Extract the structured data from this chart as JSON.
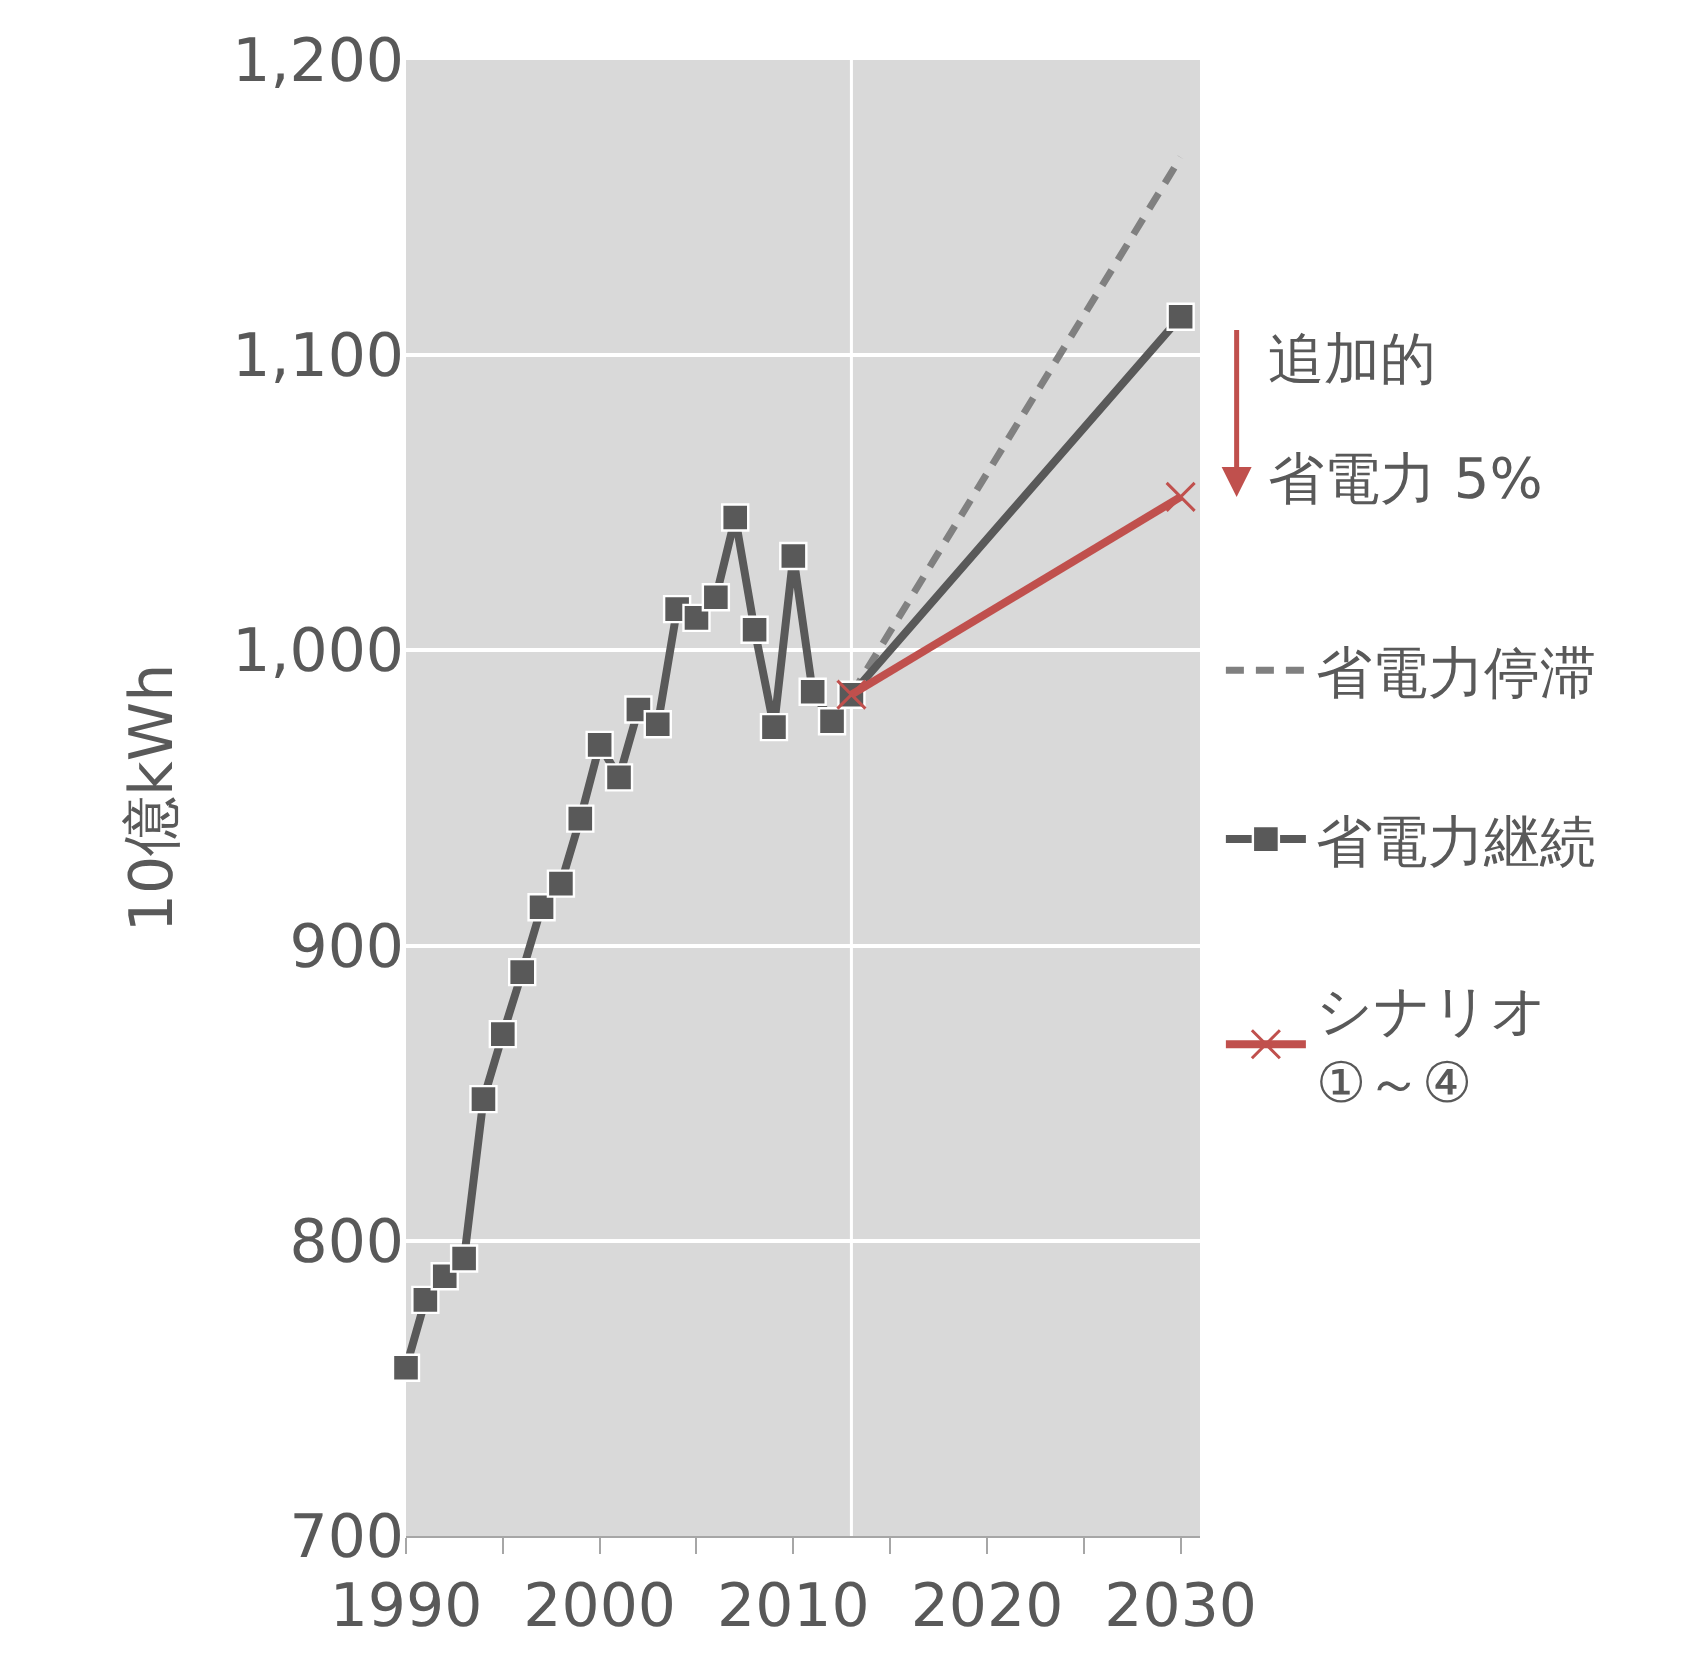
{
  "chart_data": {
    "type": "line",
    "ylabel": "10億kWh",
    "xlim": [
      1990,
      2031
    ],
    "ylim": [
      700,
      1200
    ],
    "xticks": [
      1990,
      {
        "value": 1995,
        "label": null
      },
      2000,
      {
        "value": 2005,
        "label": null
      },
      2010,
      {
        "value": 2015,
        "label": null
      },
      2020,
      {
        "value": 2025,
        "label": null
      },
      2030
    ],
    "yticks": [
      {
        "value": 700,
        "label": "700"
      },
      {
        "value": 800,
        "label": "800"
      },
      {
        "value": 900,
        "label": "900"
      },
      {
        "value": 1000,
        "label": "1,000"
      },
      {
        "value": 1100,
        "label": "1,100"
      },
      {
        "value": 1200,
        "label": "1,200"
      }
    ],
    "grid": "y",
    "legend": "right",
    "ref_lines": [
      {
        "axis": "x",
        "value": 2013,
        "color": "#ffffff"
      }
    ],
    "annotations": [
      {
        "text": "追加的",
        "x": 2030,
        "y": 1052
      },
      {
        "text": "省電力 5%",
        "x": 2030,
        "y": 1052
      }
    ],
    "series": [
      {
        "name": "省電力停滞",
        "color": "#808080",
        "line_style": "dashed",
        "marker": "none",
        "x": [
          2013,
          2030
        ],
        "values": [
          985,
          1167
        ]
      },
      {
        "name": "省電力継続",
        "color": "#595959",
        "line_style": "solid",
        "marker": "square",
        "x": [
          1990,
          1991,
          1992,
          1993,
          1994,
          1995,
          1996,
          1997,
          1998,
          1999,
          2000,
          2001,
          2002,
          2003,
          2004,
          2005,
          2006,
          2007,
          2008,
          2009,
          2010,
          2011,
          2012,
          2013,
          2030
        ],
        "values": [
          757,
          780,
          788,
          794,
          848,
          870,
          891,
          913,
          921,
          943,
          968,
          957,
          980,
          975,
          1014,
          1011,
          1018,
          1045,
          1007,
          974,
          1032,
          986,
          976,
          985,
          1113
        ]
      },
      {
        "name": "シナリオ\n①～④",
        "color": "#c0504d",
        "line_style": "solid",
        "marker": "cross",
        "x": [
          2013,
          2030
        ],
        "values": [
          985,
          1052
        ]
      }
    ]
  }
}
